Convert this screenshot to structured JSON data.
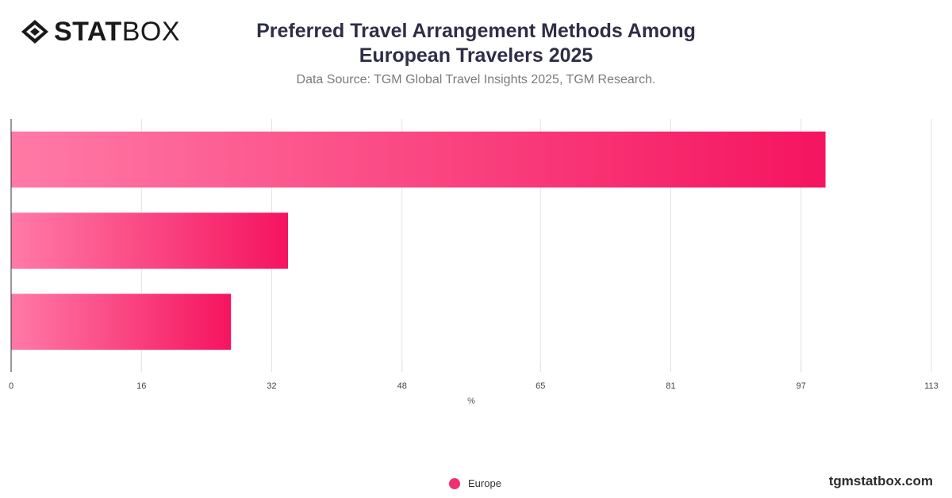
{
  "brand": {
    "logo_bold": "STAT",
    "logo_light": "BOX",
    "site": "tgmstatbox.com"
  },
  "header": {
    "title_line1": "Preferred Travel Arrangement Methods Among",
    "title_line2": "European Travelers 2025",
    "subtitle": "Data Source: TGM Global Travel Insights 2025, TGM Research."
  },
  "colors": {
    "bar_start": "#ff7aa6",
    "bar_end": "#f5145f",
    "grid": "#e3e3e3",
    "axis": "#333333",
    "legend": "#f0306e"
  },
  "chart_data": {
    "type": "bar",
    "orientation": "horizontal",
    "categories": [
      "",
      "",
      ""
    ],
    "series": [
      {
        "name": "Europe",
        "values": [
          100,
          34,
          27
        ]
      }
    ],
    "xlabel": "%",
    "xlim": [
      0,
      113
    ],
    "xticks": [
      0,
      16,
      32,
      48,
      65,
      81,
      97,
      113
    ],
    "grid": true,
    "legend_position": "bottom"
  }
}
